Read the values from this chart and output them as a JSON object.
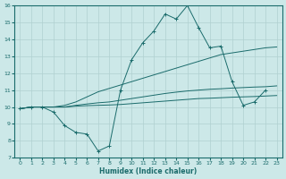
{
  "xlabel": "Humidex (Indice chaleur)",
  "background_color": "#cce8e8",
  "grid_color": "#b0d0d0",
  "line_color": "#1a6b6b",
  "xlim": [
    -0.5,
    23.5
  ],
  "ylim": [
    7,
    16
  ],
  "xticks": [
    0,
    1,
    2,
    3,
    4,
    5,
    6,
    7,
    8,
    9,
    10,
    11,
    12,
    13,
    14,
    15,
    16,
    17,
    18,
    19,
    20,
    21,
    22,
    23
  ],
  "yticks": [
    7,
    8,
    9,
    10,
    11,
    12,
    13,
    14,
    15,
    16
  ],
  "series": [
    {
      "x": [
        0,
        1,
        2,
        3,
        4,
        5,
        6,
        7,
        8,
        9,
        10,
        11,
        12,
        13,
        14,
        15,
        16,
        17,
        18,
        19,
        20,
        21,
        22
      ],
      "y": [
        9.9,
        10.0,
        10.0,
        9.7,
        8.9,
        8.5,
        8.4,
        7.4,
        7.7,
        11.0,
        12.8,
        13.8,
        14.5,
        15.5,
        15.2,
        16.0,
        14.7,
        13.5,
        13.6,
        11.5,
        10.1,
        10.3,
        11.0
      ],
      "marker": "+"
    },
    {
      "x": [
        0,
        1,
        2,
        3,
        4,
        5,
        6,
        7,
        8,
        9,
        10,
        11,
        12,
        13,
        14,
        15,
        16,
        17,
        18,
        19,
        20,
        21,
        22,
        23
      ],
      "y": [
        9.9,
        10.0,
        10.0,
        10.0,
        10.0,
        10.05,
        10.08,
        10.1,
        10.12,
        10.15,
        10.2,
        10.25,
        10.3,
        10.35,
        10.4,
        10.45,
        10.5,
        10.52,
        10.55,
        10.58,
        10.6,
        10.62,
        10.65,
        10.68
      ],
      "marker": null
    },
    {
      "x": [
        0,
        1,
        2,
        3,
        4,
        5,
        6,
        7,
        8,
        9,
        10,
        11,
        12,
        13,
        14,
        15,
        16,
        17,
        18,
        19,
        20,
        21,
        22,
        23
      ],
      "y": [
        9.9,
        10.0,
        10.0,
        10.0,
        10.0,
        10.1,
        10.18,
        10.25,
        10.3,
        10.4,
        10.5,
        10.6,
        10.7,
        10.8,
        10.88,
        10.95,
        11.0,
        11.05,
        11.08,
        11.12,
        11.15,
        11.18,
        11.2,
        11.25
      ],
      "marker": null
    },
    {
      "x": [
        0,
        1,
        2,
        3,
        4,
        5,
        6,
        7,
        8,
        9,
        10,
        11,
        12,
        13,
        14,
        15,
        16,
        17,
        18,
        19,
        20,
        21,
        22,
        23
      ],
      "y": [
        9.9,
        10.0,
        10.0,
        10.0,
        10.1,
        10.3,
        10.6,
        10.9,
        11.1,
        11.3,
        11.5,
        11.7,
        11.9,
        12.1,
        12.3,
        12.5,
        12.7,
        12.9,
        13.1,
        13.2,
        13.3,
        13.4,
        13.5,
        13.55
      ],
      "marker": null
    }
  ]
}
